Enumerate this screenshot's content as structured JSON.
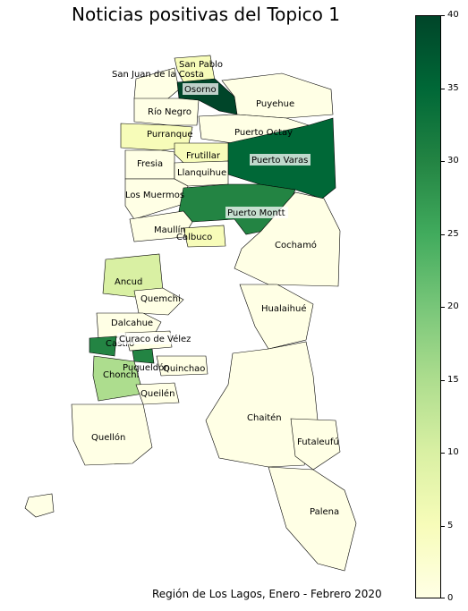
{
  "title": "Noticias positivas del Topico 1",
  "footer": "Región de Los Lagos, Enero - Febrero 2020",
  "colorbar": {
    "ticks": [
      "0",
      "5",
      "10",
      "15",
      "20",
      "25",
      "30",
      "35",
      "40"
    ],
    "min": 0,
    "max": 40,
    "stops": [
      "#ffffe5",
      "#f7fcb9",
      "#d9f0a3",
      "#addd8e",
      "#78c679",
      "#41ab5d",
      "#238443",
      "#006837",
      "#004529"
    ]
  },
  "map": {
    "labels": {
      "san_pablo": "San Pablo",
      "san_juan": "San Juan de la Costa",
      "osorno": "Osorno",
      "puyehue": "Puyehue",
      "rio_negro": "Río Negro",
      "purranque": "Purranque",
      "puerto_octay": "Puerto Octay",
      "frutillar": "Frutillar",
      "fresia": "Fresia",
      "puerto_varas": "Puerto Varas",
      "llanquihue": "Llanquihue",
      "los_muermos": "Los Muermos",
      "puerto_montt": "Puerto Montt",
      "maullin": "Maullín",
      "calbuco": "Calbuco",
      "cochamo": "Cochamó",
      "ancud": "Ancud",
      "quemchi": "Quemchi",
      "hualaihue": "Hualaihué",
      "dalcahue": "Dalcahue",
      "castro": "Castro",
      "curaco": "Curaco de Vélez",
      "puqueldon": "Puqueldón",
      "quinchao": "Quinchao",
      "chonchi": "Chonchi",
      "queilen": "Queilén",
      "chaiten": "Chaitén",
      "quellon": "Quellón",
      "futaleufu": "Futaleufú",
      "palena": "Palena"
    }
  }
}
